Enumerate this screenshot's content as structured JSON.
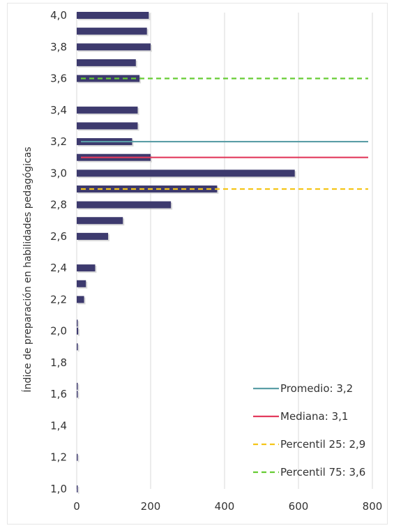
{
  "chart_data": {
    "type": "bar",
    "orientation": "horizontal",
    "title": "",
    "xlabel": "",
    "ylabel": "Índice de preparación en habilidades pedagógicas",
    "xlim": [
      0,
      800
    ],
    "x_ticks": [
      "0",
      "200",
      "400",
      "600",
      "800"
    ],
    "y_ticks": [
      "1,0",
      "1,2",
      "1,4",
      "1,6",
      "1,8",
      "2,0",
      "2,2",
      "2,4",
      "2,6",
      "2,8",
      "3,0",
      "3,2",
      "3,4",
      "3,6",
      "3,8",
      "4,0"
    ],
    "grid": "vertical",
    "bar_color": "#3d3a6e",
    "bars": [
      {
        "y": 1.0,
        "value": 2
      },
      {
        "y": 1.2,
        "value": 1
      },
      {
        "y": 1.6,
        "value": 1
      },
      {
        "y": 1.65,
        "value": 1
      },
      {
        "y": 1.9,
        "value": 3
      },
      {
        "y": 2.0,
        "value": 4
      },
      {
        "y": 2.05,
        "value": 2
      },
      {
        "y": 2.2,
        "value": 20
      },
      {
        "y": 2.3,
        "value": 25
      },
      {
        "y": 2.4,
        "value": 50
      },
      {
        "y": 2.6,
        "value": 85
      },
      {
        "y": 2.7,
        "value": 125
      },
      {
        "y": 2.8,
        "value": 255
      },
      {
        "y": 2.9,
        "value": 380
      },
      {
        "y": 3.0,
        "value": 590
      },
      {
        "y": 3.1,
        "value": 200
      },
      {
        "y": 3.2,
        "value": 150
      },
      {
        "y": 3.3,
        "value": 165
      },
      {
        "y": 3.4,
        "value": 165
      },
      {
        "y": 3.6,
        "value": 170
      },
      {
        "y": 3.7,
        "value": 160
      },
      {
        "y": 3.8,
        "value": 200
      },
      {
        "y": 3.9,
        "value": 190
      },
      {
        "y": 4.0,
        "value": 195
      }
    ],
    "reference_lines": [
      {
        "name": "Promedio: 3,2",
        "y": 3.2,
        "color": "#5b9ea6",
        "style": "solid"
      },
      {
        "name": "Mediana: 3,1",
        "y": 3.1,
        "color": "#e23b5d",
        "style": "solid"
      },
      {
        "name": "Percentil 25: 2,9",
        "y": 2.9,
        "color": "#f5c518",
        "style": "dashed"
      },
      {
        "name": "Percentil 75: 3,6",
        "y": 3.6,
        "color": "#66cc33",
        "style": "dashed"
      }
    ],
    "legend_position": "bottom-right"
  }
}
